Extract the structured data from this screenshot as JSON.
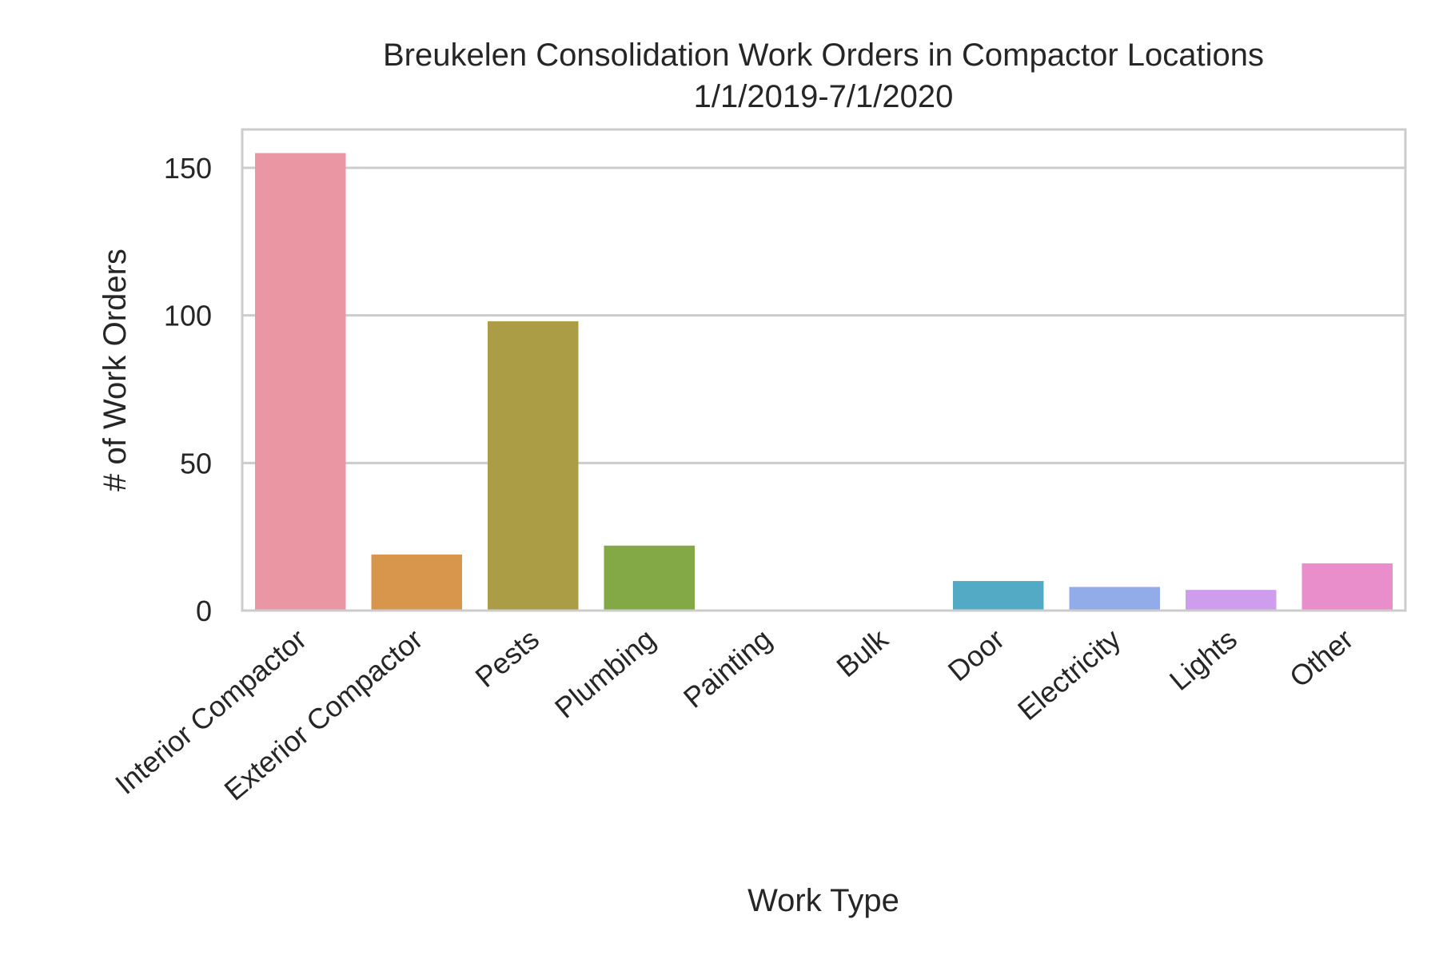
{
  "chart_data": {
    "type": "bar",
    "title": "Breukelen Consolidation Work Orders in Compactor Locations",
    "subtitle": "1/1/2019-7/1/2020",
    "xlabel": "Work Type",
    "ylabel": "# of Work Orders",
    "categories": [
      "Interior Compactor",
      "Exterior Compactor",
      "Pests",
      "Plumbing",
      "Painting",
      "Bulk",
      "Door",
      "Electricity",
      "Lights",
      "Other"
    ],
    "values": [
      155,
      19,
      98,
      22,
      0,
      0,
      10,
      8,
      7,
      16
    ],
    "colors": [
      "#ea96a3",
      "#d8954c",
      "#ab9c46",
      "#82a946",
      "#4dac7b",
      "#52ae9c",
      "#53aac4",
      "#92acea",
      "#cf9ded",
      "#ea8dcb"
    ],
    "ylim": [
      0,
      163
    ],
    "yticks": [
      0,
      50,
      100,
      150
    ],
    "grid": true,
    "grid_color": "#cccccc",
    "spine_color": "#cccccc"
  }
}
